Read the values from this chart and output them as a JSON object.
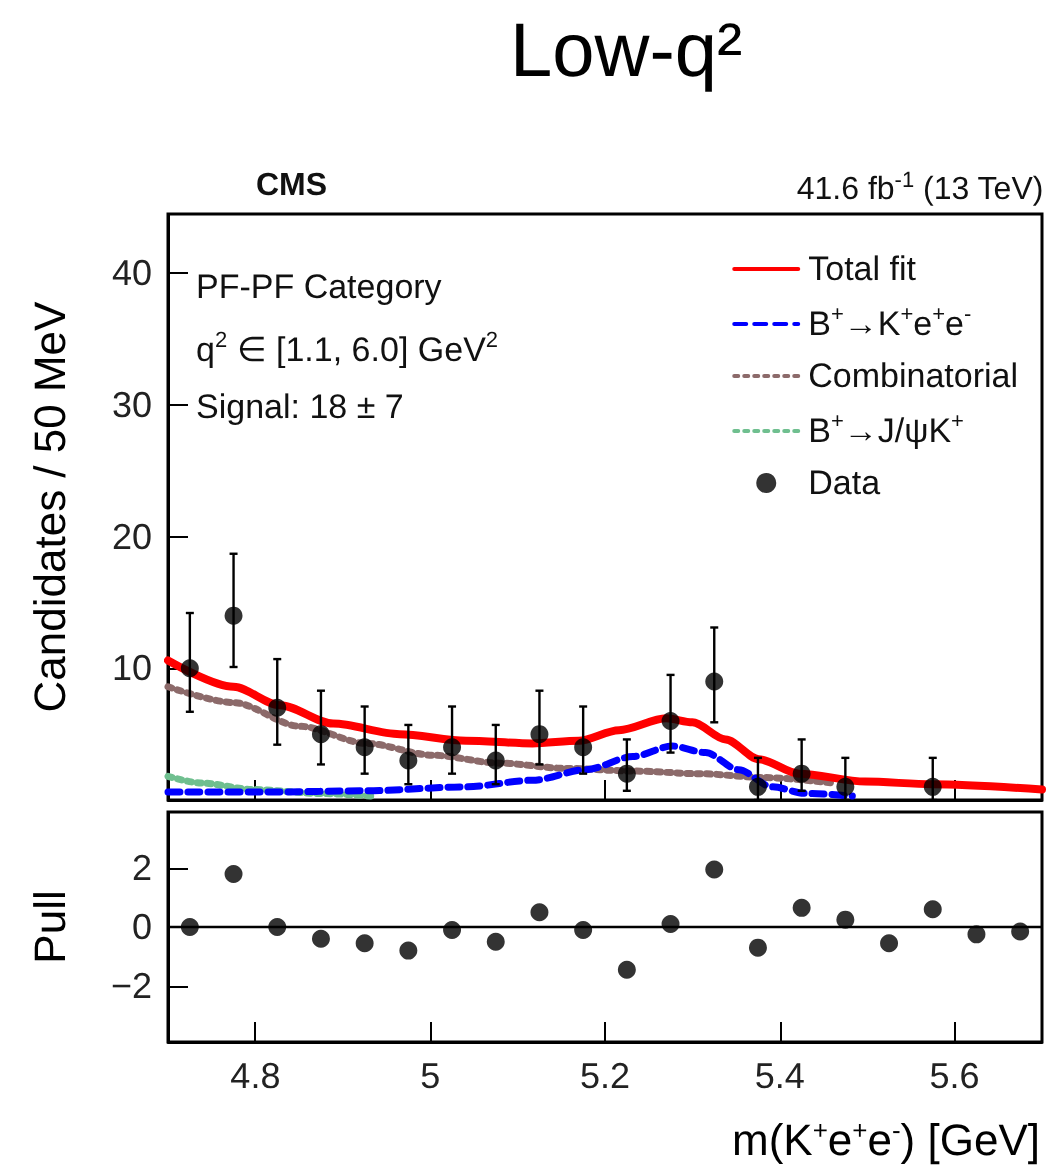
{
  "chart_data": [
    {
      "type": "line",
      "title": "Low-q²",
      "ylabel": "Candidates / 50 MeV",
      "annotations": [
        "CMS",
        "41.6 fb$^{-1}$ (13 TeV)",
        "PF-PF Category",
        "q$^{2}$ ∈ [1.1, 6.0] GeV$^{2}$",
        "Signal: 18 ± 7"
      ],
      "xlim": [
        4.7,
        5.7
      ],
      "xticks": [
        4.8,
        5,
        5.2,
        5.4,
        5.6
      ],
      "ylim": [
        0,
        44.5
      ],
      "yticks": [
        10,
        20,
        30,
        40
      ],
      "tick_labels": "y",
      "grid": false,
      "legend": "top right",
      "series": [
        {
          "name": "Total fit",
          "color": "#ff0000",
          "line_style": "solid",
          "marker": "none",
          "x": [
            4.7,
            4.775,
            4.828,
            4.889,
            4.965,
            5.041,
            5.117,
            5.17,
            5.216,
            5.27,
            5.3,
            5.338,
            5.376,
            5.422,
            5.498,
            5.574,
            5.7
          ],
          "values": [
            10.6,
            8.6,
            7.2,
            5.8,
            5.0,
            4.5,
            4.3,
            4.5,
            5.3,
            6.2,
            5.9,
            4.6,
            3.1,
            2.0,
            1.4,
            1.2,
            0.8
          ]
        },
        {
          "name": "B$^{+}$→K$^{+}$e$^{+}$e$^{-}$",
          "color": "#0000ff",
          "line_style": "dashed",
          "marker": "none",
          "x": [
            4.7,
            4.813,
            4.927,
            5.041,
            5.117,
            5.178,
            5.232,
            5.277,
            5.315,
            5.353,
            5.391,
            5.43,
            5.483
          ],
          "values": [
            0.6,
            0.6,
            0.7,
            1.0,
            1.5,
            2.3,
            3.3,
            4.1,
            3.6,
            2.3,
            1.0,
            0.5,
            0.3
          ]
        },
        {
          "name": "Combinatorial",
          "color": "#8c6a6a",
          "line_style": "dotted",
          "marker": "none",
          "x": [
            4.7,
            4.775,
            4.851,
            4.927,
            5.003,
            5.079,
            5.155,
            5.232,
            5.308,
            5.384,
            5.46
          ],
          "values": [
            8.6,
            7.4,
            5.6,
            4.3,
            3.4,
            2.8,
            2.4,
            2.2,
            2.0,
            1.7,
            1.3
          ]
        },
        {
          "name": "B$^{+}$→J/ψK$^{+}$",
          "color": "#6fbf8f",
          "line_style": "dotted",
          "marker": "none",
          "x": [
            4.7,
            4.737,
            4.797,
            4.874,
            4.934
          ],
          "values": [
            1.8,
            1.3,
            0.8,
            0.5,
            0.3
          ]
        },
        {
          "name": "Data",
          "type": "scatter",
          "color": "#000000",
          "marker": "circle",
          "x": [
            4.725,
            4.775,
            4.825,
            4.875,
            4.925,
            4.975,
            5.025,
            5.075,
            5.125,
            5.175,
            5.225,
            5.275,
            5.325,
            5.375,
            5.425,
            5.475,
            5.575
          ],
          "values": [
            10,
            14,
            7,
            5,
            4,
            3,
            4,
            3,
            5,
            4,
            2,
            6,
            9,
            1,
            2,
            1,
            1
          ],
          "errors": [
            [
              6.7,
              14.2
            ],
            [
              10.1,
              18.7
            ],
            [
              4.2,
              10.7
            ],
            [
              2.7,
              8.3
            ],
            [
              2.0,
              7.1
            ],
            [
              1.2,
              5.7
            ],
            [
              2.0,
              7.1
            ],
            [
              1.2,
              5.7
            ],
            [
              2.7,
              8.3
            ],
            [
              2.0,
              7.1
            ],
            [
              0.7,
              4.6
            ],
            [
              3.6,
              9.5
            ],
            [
              5.9,
              13.1
            ],
            [
              0,
              3.2
            ],
            [
              0.7,
              4.6
            ],
            [
              0,
              3.2
            ],
            [
              0,
              3.2
            ]
          ]
        }
      ]
    },
    {
      "type": "scatter",
      "ylabel": "Pull",
      "xlabel": "m(K$^{+}$e$^{+}$e$^{-}$) [GeV]",
      "xlim": [
        4.7,
        5.7
      ],
      "xticks": [
        4.8,
        5,
        5.2,
        5.4,
        5.6
      ],
      "ylim": [
        -3.9,
        3.9
      ],
      "yticks": [
        -2,
        0,
        2
      ],
      "grid": false,
      "legend": false,
      "marker": "circle",
      "color": "#000000",
      "x": [
        4.725,
        4.775,
        4.825,
        4.875,
        4.925,
        4.975,
        5.025,
        5.075,
        5.125,
        5.175,
        5.225,
        5.275,
        5.325,
        5.375,
        5.425,
        5.475,
        5.525,
        5.575,
        5.625,
        5.675
      ],
      "values": [
        0,
        1.8,
        0,
        -0.4,
        -0.55,
        -0.8,
        -0.1,
        -0.5,
        0.5,
        -0.1,
        -1.45,
        0.1,
        1.95,
        -0.7,
        0.65,
        0.25,
        -0.55,
        0.6,
        -0.25,
        -0.15
      ],
      "ref_lines": [
        {
          "axis": "y",
          "value": 0,
          "color": "#000000",
          "line_style": "solid"
        }
      ]
    }
  ]
}
